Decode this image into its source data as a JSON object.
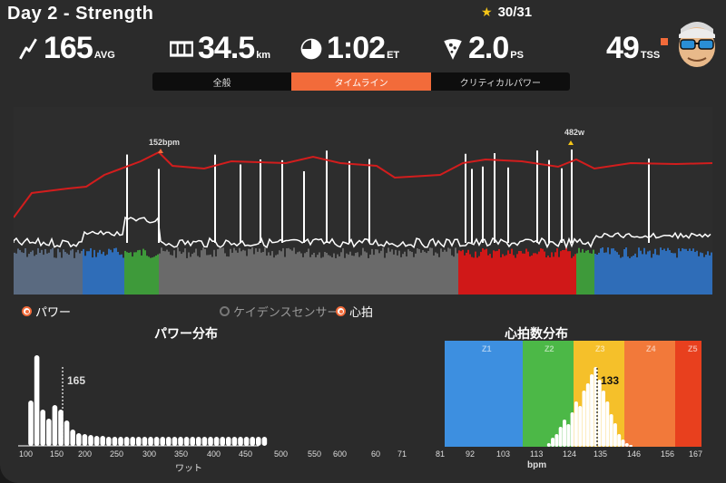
{
  "header": {
    "title": "Day 2 - Strength",
    "progress": "30/31"
  },
  "stats": {
    "power_value": "165",
    "power_unit": "AVG",
    "distance_value": "34.5",
    "distance_unit": "km",
    "time_value": "1:02",
    "time_unit": "ET",
    "ps_value": "2.0",
    "ps_unit": "PS",
    "tss_value": "49",
    "tss_unit": "TSS"
  },
  "tabs": [
    {
      "label": "全般"
    },
    {
      "label": "タイムライン"
    },
    {
      "label": "クリティカルパワー"
    }
  ],
  "timeline": {
    "hr_peak_label": "152bpm",
    "power_peak_label": "482w"
  },
  "legend": {
    "power": "パワー",
    "cadence": "ケイデンスセンサー",
    "heart": "心拍"
  },
  "power_dist": {
    "title": "パワー分布",
    "marker": "165",
    "xlabel": "ワット",
    "ticks": [
      "100",
      "150",
      "200",
      "250",
      "300",
      "350",
      "400",
      "450",
      "500",
      "550",
      "600",
      "60",
      "71"
    ]
  },
  "hr_dist": {
    "title": "心拍数分布",
    "marker": "133",
    "xlabel": "bpm",
    "zones": [
      "Z1",
      "Z2",
      "Z3",
      "Z4",
      "Z5"
    ],
    "zone_colors": [
      "#3d8fe0",
      "#4cb847",
      "#f5c02a",
      "#f2793a",
      "#e8401e"
    ],
    "ticks": [
      "81",
      "92",
      "103",
      "113",
      "124",
      "135",
      "146",
      "156",
      "167"
    ]
  },
  "colors": {
    "accent": "#f26b3a",
    "hr_line": "#d21d1d",
    "power_z1": "#2f6db8",
    "power_z2": "#3e9a3a",
    "power_z5": "#d01818"
  }
}
